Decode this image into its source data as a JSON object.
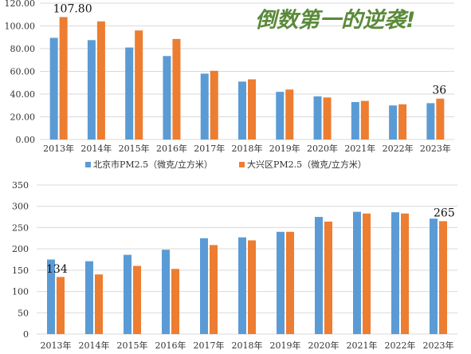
{
  "headline": "倒数第一的逆袭!",
  "colors": {
    "beijing": "#5b9bd5",
    "daxing": "#ed7d31",
    "grid": "#d9d9d9",
    "headline": "#5a8a3a"
  },
  "chart_data": [
    {
      "type": "bar",
      "categories": [
        "2013年",
        "2014年",
        "2015年",
        "2016年",
        "2017年",
        "2018年",
        "2019年",
        "2020年",
        "2021年",
        "2022年",
        "2023年"
      ],
      "series": [
        {
          "name": "北京市PM2.5（微克/立方米）",
          "values": [
            89.5,
            87.5,
            81,
            73.5,
            58,
            51,
            42,
            38,
            33,
            30,
            32
          ]
        },
        {
          "name": "大兴区PM2.5（微克/立方米）",
          "values": [
            107.8,
            104,
            96,
            88.5,
            60.5,
            53,
            44,
            37,
            34,
            31,
            36
          ]
        }
      ],
      "ylim": [
        0,
        120
      ],
      "yticks": [
        "0.00",
        "20.00",
        "40.00",
        "60.00",
        "80.00",
        "100.00",
        "120.00"
      ],
      "annotations": [
        "107.80",
        "36"
      ],
      "grid": true,
      "legend": "bottom"
    },
    {
      "type": "bar",
      "categories": [
        "2013年",
        "2014年",
        "2015年",
        "2016年",
        "2017年",
        "2018年",
        "2019年",
        "2020年",
        "2021年",
        "2022年",
        "2023年"
      ],
      "series": [
        {
          "values": [
            175,
            171,
            186,
            198,
            225,
            227,
            240,
            275,
            287,
            286,
            271
          ]
        },
        {
          "values": [
            134,
            140,
            160,
            153,
            209,
            220,
            240,
            264,
            283,
            283,
            265
          ]
        }
      ],
      "ylim": [
        0,
        350
      ],
      "yticks": [
        "0",
        "50",
        "100",
        "150",
        "200",
        "250",
        "300",
        "350"
      ],
      "annotations": [
        "134",
        "265"
      ],
      "grid": true
    }
  ]
}
